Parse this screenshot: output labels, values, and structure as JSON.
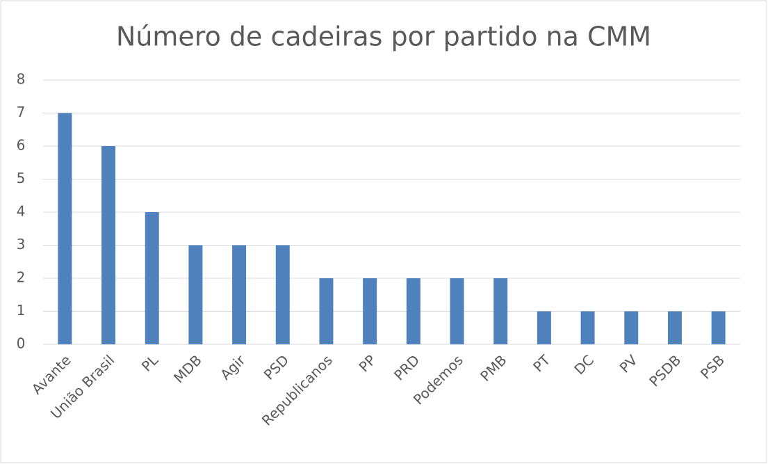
{
  "chart_data": {
    "type": "bar",
    "title": "Número de cadeiras por partido na CMM",
    "categories": [
      "Avante",
      "União Brasil",
      "PL",
      "MDB",
      "Agir",
      "PSD",
      "Republicanos",
      "PP",
      "PRD",
      "Podemos",
      "PMB",
      "PT",
      "DC",
      "PV",
      "PSDB",
      "PSB"
    ],
    "values": [
      7,
      6,
      4,
      3,
      3,
      3,
      2,
      2,
      2,
      2,
      2,
      1,
      1,
      1,
      1,
      1
    ],
    "color": "#4f81bd",
    "ylim": [
      0,
      8
    ],
    "yticks": [
      0,
      1,
      2,
      3,
      4,
      5,
      6,
      7,
      8
    ],
    "grid": true
  }
}
